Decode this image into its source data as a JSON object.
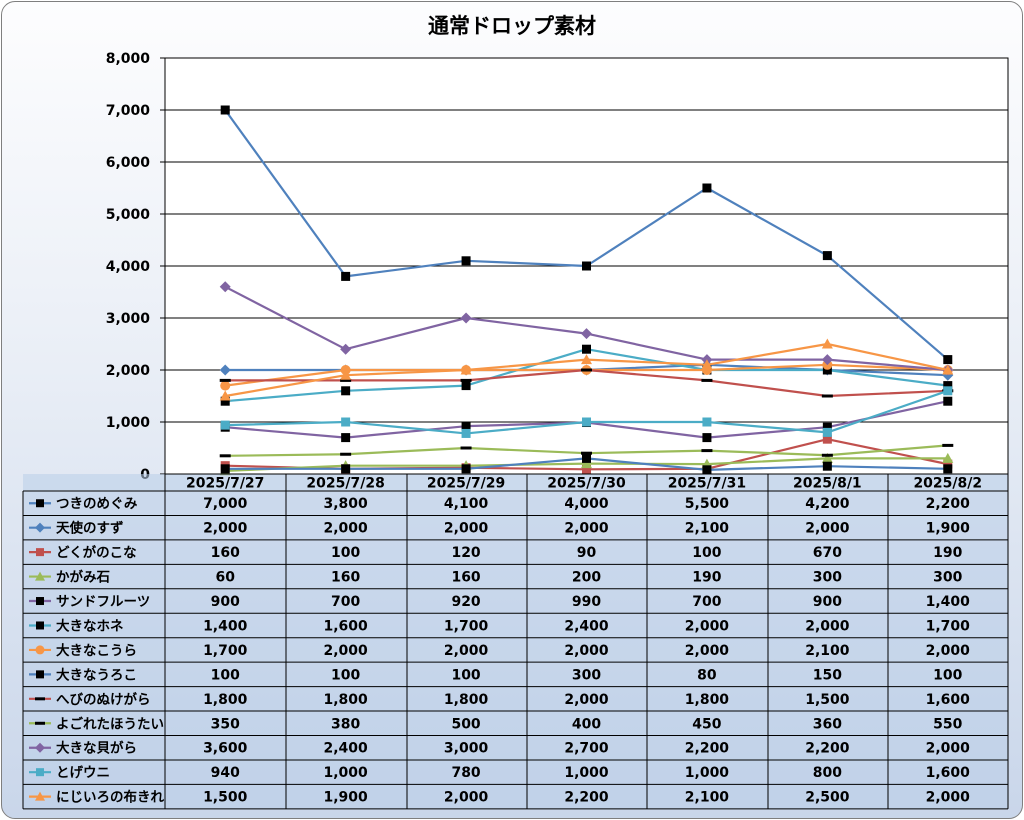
{
  "chart_data": {
    "type": "line",
    "title": "通常ドロップ素材",
    "y_tick_labels": [
      "0",
      "1,000",
      "2,000",
      "3,000",
      "4,000",
      "5,000",
      "6,000",
      "7,000",
      "8,000"
    ],
    "ylim": [
      0,
      8000
    ],
    "grid": true,
    "legend_placement": "data-table-left",
    "categories": [
      "2025/7/27",
      "2025/7/28",
      "2025/7/29",
      "2025/7/30",
      "2025/7/31",
      "2025/8/1",
      "2025/8/2"
    ],
    "series": [
      {
        "name": "つきのめぐみ",
        "color": "#4F81BD",
        "marker": "square-black",
        "values": [
          7000,
          3800,
          4100,
          4000,
          5500,
          4200,
          2200
        ],
        "labels": [
          "7,000",
          "3,800",
          "4,100",
          "4,000",
          "5,500",
          "4,200",
          "2,200"
        ]
      },
      {
        "name": "天使のすず",
        "color": "#4F81BD",
        "marker": "diamond",
        "values": [
          2000,
          2000,
          2000,
          2000,
          2100,
          2000,
          1900
        ],
        "labels": [
          "2,000",
          "2,000",
          "2,000",
          "2,000",
          "2,100",
          "2,000",
          "1,900"
        ]
      },
      {
        "name": "どくがのこな",
        "color": "#C0504D",
        "marker": "square",
        "values": [
          160,
          100,
          120,
          90,
          100,
          670,
          190
        ],
        "labels": [
          "160",
          "100",
          "120",
          "90",
          "100",
          "670",
          "190"
        ]
      },
      {
        "name": "かがみ石",
        "color": "#9BBB59",
        "marker": "triangle",
        "values": [
          60,
          160,
          160,
          200,
          190,
          300,
          300
        ],
        "labels": [
          "60",
          "160",
          "160",
          "200",
          "190",
          "300",
          "300"
        ]
      },
      {
        "name": "サンドフルーツ",
        "color": "#8064A2",
        "marker": "square-black",
        "values": [
          900,
          700,
          920,
          990,
          700,
          900,
          1400
        ],
        "labels": [
          "900",
          "700",
          "920",
          "990",
          "700",
          "900",
          "1,400"
        ]
      },
      {
        "name": "大きなホネ",
        "color": "#4BACC6",
        "marker": "square-black",
        "values": [
          1400,
          1600,
          1700,
          2400,
          2000,
          2000,
          1700
        ],
        "labels": [
          "1,400",
          "1,600",
          "1,700",
          "2,400",
          "2,000",
          "2,000",
          "1,700"
        ]
      },
      {
        "name": "大きなこうら",
        "color": "#F79646",
        "marker": "circle",
        "values": [
          1700,
          2000,
          2000,
          2000,
          2000,
          2100,
          2000
        ],
        "labels": [
          "1,700",
          "2,000",
          "2,000",
          "2,000",
          "2,000",
          "2,100",
          "2,000"
        ]
      },
      {
        "name": "大きなうろこ",
        "color": "#4F81BD",
        "marker": "square-black",
        "values": [
          100,
          100,
          100,
          300,
          80,
          150,
          100
        ],
        "labels": [
          "100",
          "100",
          "100",
          "300",
          "80",
          "150",
          "100"
        ]
      },
      {
        "name": "へびのぬけがら",
        "color": "#C0504D",
        "marker": "dash-black",
        "values": [
          1800,
          1800,
          1800,
          2000,
          1800,
          1500,
          1600
        ],
        "labels": [
          "1,800",
          "1,800",
          "1,800",
          "2,000",
          "1,800",
          "1,500",
          "1,600"
        ]
      },
      {
        "name": "よごれたほうたい",
        "color": "#9BBB59",
        "marker": "dash-black",
        "values": [
          350,
          380,
          500,
          400,
          450,
          360,
          550
        ],
        "labels": [
          "350",
          "380",
          "500",
          "400",
          "450",
          "360",
          "550"
        ]
      },
      {
        "name": "大きな貝がら",
        "color": "#8064A2",
        "marker": "diamond",
        "values": [
          3600,
          2400,
          3000,
          2700,
          2200,
          2200,
          2000
        ],
        "labels": [
          "3,600",
          "2,400",
          "3,000",
          "2,700",
          "2,200",
          "2,200",
          "2,000"
        ]
      },
      {
        "name": "とげウニ",
        "color": "#4BACC6",
        "marker": "square",
        "values": [
          940,
          1000,
          780,
          1000,
          1000,
          800,
          1600
        ],
        "labels": [
          "940",
          "1,000",
          "780",
          "1,000",
          "1,000",
          "800",
          "1,600"
        ]
      },
      {
        "name": "にじいろの布きれ",
        "color": "#F79646",
        "marker": "triangle",
        "values": [
          1500,
          1900,
          2000,
          2200,
          2100,
          2500,
          2000
        ],
        "labels": [
          "1,500",
          "1,900",
          "2,000",
          "2,200",
          "2,100",
          "2,500",
          "2,000"
        ]
      }
    ]
  }
}
